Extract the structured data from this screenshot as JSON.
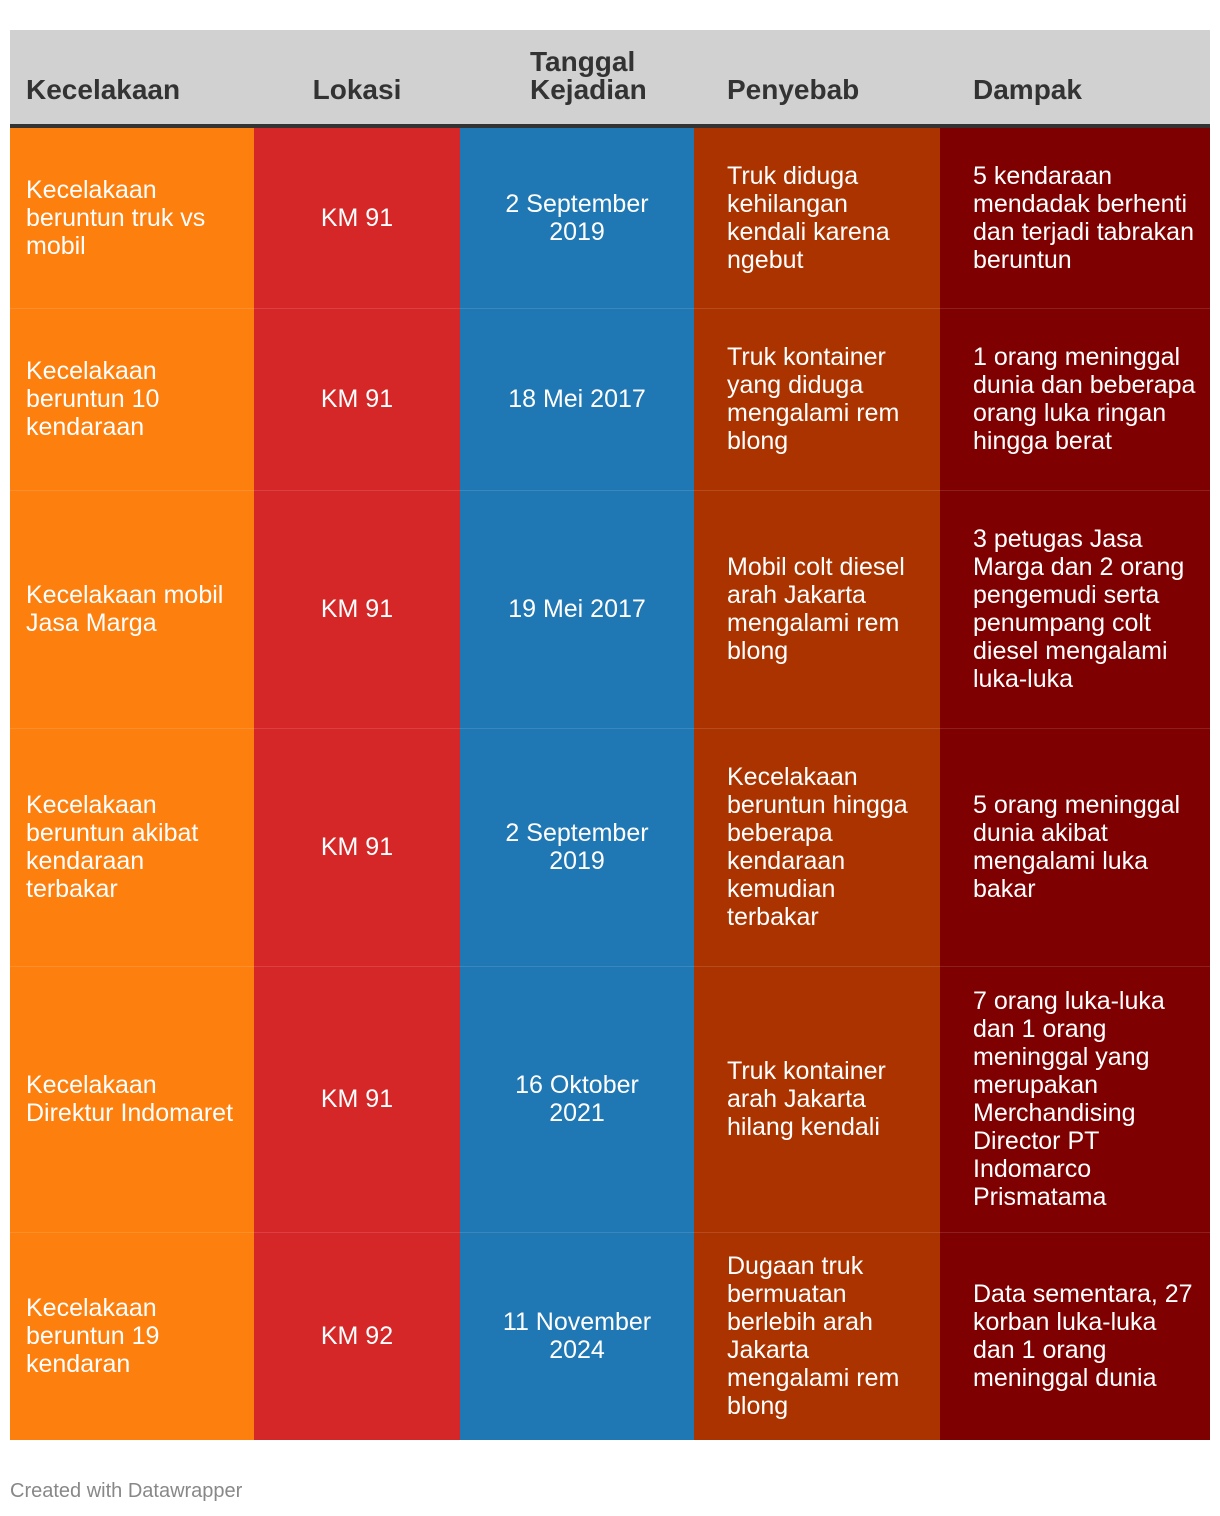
{
  "table": {
    "headers": [
      "Kecelakaan",
      "Lokasi",
      "Tanggal Kejadian",
      "Penyebab",
      "Dampak"
    ],
    "rows": [
      {
        "kecelakaan": "Kecelakaan beruntun truk vs mobil",
        "lokasi": "KM 91",
        "tanggal": "2 September 2019",
        "penyebab": "Truk diduga kehilangan kendali karena ngebut",
        "dampak": "5 kendaraan mendadak berhenti dan terjadi tabrakan beruntun"
      },
      {
        "kecelakaan": "Kecelakaan beruntun 10 kendaraan",
        "lokasi": "KM 91",
        "tanggal": "18 Mei 2017",
        "penyebab": "Truk kontainer yang diduga mengalami rem blong",
        "dampak": "1 orang meninggal dunia dan beberapa orang luka ringan hingga berat"
      },
      {
        "kecelakaan": "Kecelakaan mobil Jasa Marga",
        "lokasi": "KM 91",
        "tanggal": "19 Mei 2017",
        "penyebab": "Mobil colt diesel arah Jakarta mengalami rem blong",
        "dampak": "3 petugas Jasa Marga dan 2 orang pengemudi serta penumpang colt diesel mengalami luka-luka"
      },
      {
        "kecelakaan": "Kecelakaan beruntun akibat kendaraan terbakar",
        "lokasi": "KM 91",
        "tanggal": "2 September 2019",
        "penyebab": "Kecelakaan beruntun hingga beberapa kendaraan kemudian terbakar",
        "dampak": "5 orang meninggal dunia akibat mengalami luka bakar"
      },
      {
        "kecelakaan": "Kecelakaan Direktur Indomaret",
        "lokasi": "KM 91",
        "tanggal": "16 Oktober 2021",
        "penyebab": "Truk kontainer arah Jakarta hilang kendali",
        "dampak": "7 orang luka-luka dan 1 orang meninggal yang merupakan Merchandising Director PT Indomarco Prismatama"
      },
      {
        "kecelakaan": "Kecelakaan beruntun 19 kendaran",
        "lokasi": "KM 92",
        "tanggal": "11 November 2024",
        "penyebab": "Dugaan truk bermuatan berlebih arah Jakarta mengalami rem blong",
        "dampak": "Data sementara, 27 korban luka-luka dan 1 orang meninggal dunia"
      }
    ]
  },
  "chart_data": {
    "type": "table",
    "columns": [
      "Kecelakaan",
      "Lokasi",
      "Tanggal Kejadian",
      "Penyebab",
      "Dampak"
    ],
    "column_colors": [
      "#fd7f0e",
      "#d62728",
      "#1f77b4",
      "#ab3300",
      "#7f0000"
    ],
    "header_color": "#d1d1d1"
  },
  "footer": {
    "credit": "Created with Datawrapper"
  }
}
